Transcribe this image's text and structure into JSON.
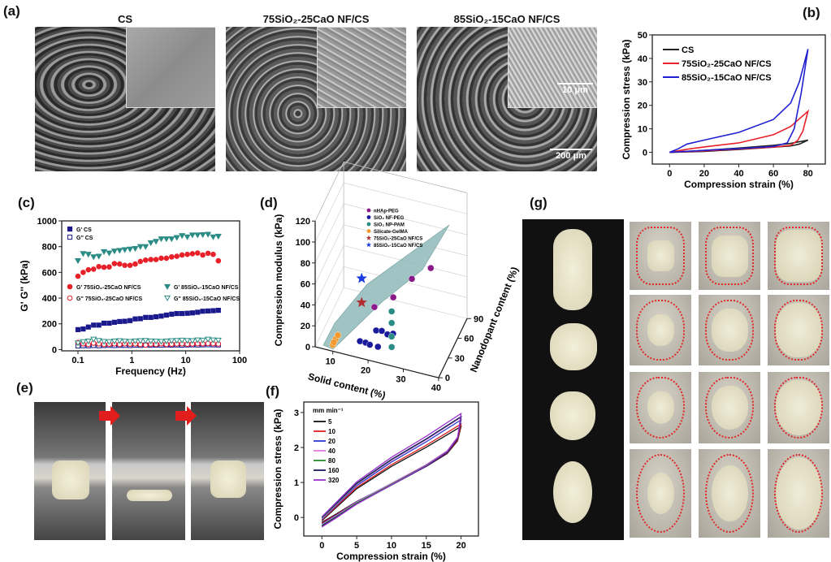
{
  "panels": {
    "a": {
      "label": "(a)",
      "titles": [
        "CS",
        "75SiO₂-25CaO NF/CS",
        "85SiO₂-15CaO NF/CS"
      ],
      "scale_inset": "10 μm",
      "scale_main": "200 μm"
    },
    "b": {
      "label": "(b)"
    },
    "c": {
      "label": "(c)"
    },
    "d": {
      "label": "(d)"
    },
    "e": {
      "label": "(e)"
    },
    "f": {
      "label": "(f)"
    },
    "g": {
      "label": "(g)"
    }
  },
  "colors": {
    "cs": "#222222",
    "ns75": "#e8202a",
    "ns85": "#2020d0",
    "navy": "#1a1a8c",
    "teal": "#2a8c85",
    "purple": "#8a1a8a",
    "orange": "#f39a2e"
  },
  "chart_data": [
    {
      "id": "b",
      "type": "line",
      "xlabel": "Compression strain (%)",
      "ylabel": "Compression stress (kPa)",
      "xlim": [
        -10,
        90
      ],
      "ylim": [
        -5,
        50
      ],
      "xticks": [
        0,
        20,
        40,
        60,
        80
      ],
      "yticks": [
        0,
        10,
        20,
        30,
        40,
        50
      ],
      "legend_position": "top-left",
      "series": [
        {
          "name": "CS",
          "color": "#222222",
          "points": [
            [
              0,
              0
            ],
            [
              20,
              0.8
            ],
            [
              40,
              1.8
            ],
            [
              60,
              3
            ],
            [
              70,
              3.8
            ],
            [
              80,
              5.2
            ],
            [
              75,
              3.5
            ],
            [
              70,
              2.7
            ],
            [
              60,
              2.2
            ],
            [
              40,
              1.2
            ],
            [
              20,
              0.4
            ],
            [
              0,
              0
            ]
          ]
        },
        {
          "name": "75SiO₂-25CaO NF/CS",
          "color": "#e8202a",
          "points": [
            [
              0,
              0
            ],
            [
              10,
              1.3
            ],
            [
              20,
              2.3
            ],
            [
              40,
              4
            ],
            [
              60,
              7.5
            ],
            [
              70,
              11
            ],
            [
              80,
              17.5
            ],
            [
              77,
              9
            ],
            [
              74,
              5
            ],
            [
              70,
              3
            ],
            [
              60,
              2.2
            ],
            [
              40,
              1.4
            ],
            [
              20,
              0.6
            ],
            [
              0,
              0
            ]
          ]
        },
        {
          "name": "85SiO₂-15CaO NF/CS",
          "color": "#2020d0",
          "points": [
            [
              0,
              0
            ],
            [
              5,
              1.5
            ],
            [
              10,
              3.5
            ],
            [
              20,
              5.2
            ],
            [
              40,
              8.5
            ],
            [
              60,
              14
            ],
            [
              70,
              21
            ],
            [
              75,
              30
            ],
            [
              80,
              44
            ],
            [
              76,
              25
            ],
            [
              72,
              10
            ],
            [
              68,
              4
            ],
            [
              60,
              2.5
            ],
            [
              40,
              1.6
            ],
            [
              20,
              0.8
            ],
            [
              0,
              0
            ]
          ]
        }
      ]
    },
    {
      "id": "c",
      "type": "scatter",
      "xscale": "log",
      "xlabel": "Frequency (Hz)",
      "ylabel": "G' G'' (kPa)",
      "xlim": [
        0.05,
        100
      ],
      "ylim": [
        -10,
        1000
      ],
      "xticks": [
        0.1,
        1,
        10,
        100
      ],
      "xtick_labels": [
        "0.1",
        "1",
        "10",
        "100"
      ],
      "yticks": [
        0,
        200,
        400,
        600,
        800,
        1000
      ],
      "x": [
        0.1,
        0.125,
        0.156,
        0.195,
        0.244,
        0.304,
        0.38,
        0.475,
        0.593,
        0.74,
        0.925,
        1.155,
        1.44,
        1.8,
        2.25,
        2.81,
        3.51,
        4.38,
        5.47,
        6.83,
        8.53,
        10.7,
        13.3,
        16.6,
        20.7,
        25.9,
        32.3,
        40.3
      ],
      "series": [
        {
          "name": "G' CS",
          "marker": "square-filled",
          "color": "#1a1a8c",
          "values": [
            155,
            160,
            175,
            190,
            190,
            205,
            205,
            212,
            218,
            220,
            225,
            238,
            240,
            250,
            250,
            255,
            260,
            268,
            275,
            280,
            280,
            282,
            285,
            290,
            298,
            300,
            302,
            305
          ]
        },
        {
          "name": "G'' CS",
          "marker": "square-open",
          "color": "#1a1a8c",
          "values": [
            28,
            30,
            30,
            32,
            30,
            32,
            33,
            32,
            33,
            33,
            32,
            34,
            33,
            35,
            34,
            35,
            34,
            36,
            35,
            36,
            35,
            36,
            37,
            36,
            37,
            38,
            37,
            36
          ]
        },
        {
          "name": "G' 75SiO₂-25CaO NF/CS",
          "marker": "circle-filled",
          "color": "#e8202a",
          "values": [
            570,
            600,
            620,
            625,
            645,
            640,
            642,
            668,
            665,
            655,
            655,
            665,
            685,
            695,
            700,
            700,
            710,
            710,
            720,
            725,
            735,
            740,
            745,
            750,
            735,
            748,
            740,
            690
          ]
        },
        {
          "name": "G'' 75SiO₂-25CaO NF/CS",
          "marker": "circle-open",
          "color": "#e8202a",
          "values": [
            55,
            45,
            40,
            50,
            45,
            40,
            42,
            45,
            40,
            45,
            42,
            44,
            40,
            35,
            42,
            40,
            45,
            40,
            42,
            44,
            45,
            42,
            44,
            46,
            45,
            48,
            46,
            44
          ]
        },
        {
          "name": "G' 85SiO₂-15CaO NF/CS",
          "marker": "triangle-down-filled",
          "color": "#2a8c85",
          "values": [
            690,
            745,
            740,
            720,
            725,
            760,
            750,
            765,
            770,
            775,
            780,
            785,
            800,
            800,
            830,
            840,
            860,
            860,
            860,
            870,
            885,
            875,
            890,
            890,
            892,
            895,
            875,
            880
          ]
        },
        {
          "name": "G'' 85SiO₂-15CaO NF/CS",
          "marker": "triangle-down-open",
          "color": "#2a8c85",
          "values": [
            50,
            60,
            65,
            80,
            70,
            62,
            60,
            65,
            68,
            64,
            62,
            66,
            68,
            70,
            66,
            64,
            62,
            65,
            68,
            70,
            72,
            70,
            68,
            74,
            72,
            80,
            74,
            72
          ]
        }
      ]
    },
    {
      "id": "d",
      "type": "scatter3d",
      "xlabel": "Solid content (%)",
      "ylabel": "Nanodopant content (%)",
      "zlabel": "Compression modulus (kPa)",
      "xticks": [
        10,
        20,
        30,
        40
      ],
      "yticks": [
        0,
        30,
        60,
        90
      ],
      "zticks": [
        0,
        20,
        40,
        60,
        80,
        100,
        120
      ],
      "legend_position": "top",
      "series": [
        {
          "name": "nHAp-PEG",
          "marker": "sphere",
          "color": "#8a1a8a",
          "points": [
            [
              20,
              20,
              38
            ],
            [
              25,
              24,
              49
            ],
            [
              30,
              27,
              69
            ],
            [
              35,
              31,
              81
            ]
          ]
        },
        {
          "name": "SiO₂ NF-PEG",
          "marker": "sphere",
          "color": "#1a1a9c",
          "points": [
            [
              16.8,
              10,
              9
            ],
            [
              18.4,
              10,
              9
            ],
            [
              19.6,
              10,
              8
            ],
            [
              21.9,
              10,
              8
            ],
            [
              18.7,
              40,
              2
            ],
            [
              20.3,
              40,
              3
            ],
            [
              21.9,
              40,
              1
            ],
            [
              23.5,
              40,
              3
            ]
          ]
        },
        {
          "name": "SiO₂ NP-PAM",
          "marker": "sphere",
          "color": "#2a8c85",
          "points": [
            [
              24.9,
              20,
              38
            ],
            [
              24.9,
              20,
              27
            ],
            [
              24.9,
              20,
              14
            ],
            [
              24.9,
              20,
              4
            ]
          ]
        },
        {
          "name": "Silicate-GelMA",
          "marker": "sphere",
          "color": "#f39a2e",
          "points": [
            [
              10,
              0,
              6
            ],
            [
              10.5,
              3,
              10
            ],
            [
              11,
              5,
              13
            ],
            [
              10.2,
              1,
              8
            ]
          ]
        },
        {
          "name": "75SiO₂-25CaO NF/CS",
          "marker": "star",
          "color": "#b03030",
          "points": [
            [
              18,
              2,
              52
            ]
          ]
        },
        {
          "name": "85SiO₂-15CaO NF/CS",
          "marker": "star",
          "color": "#1a3ae0",
          "points": [
            [
              18,
              2,
              75
            ]
          ]
        }
      ]
    },
    {
      "id": "f",
      "type": "line",
      "xlabel": "Compression strain (%)",
      "ylabel": "Compression stress (kPa)",
      "xlim": [
        -2.6,
        22.5
      ],
      "ylim": [
        -0.53,
        3.3
      ],
      "xticks": [
        0,
        5,
        10,
        15,
        20
      ],
      "yticks": [
        0,
        1,
        2,
        3
      ],
      "legend_title": "mm min⁻¹",
      "legend_position": "top-left",
      "loop": [
        [
          0,
          -0.1
        ],
        [
          2,
          0.3
        ],
        [
          5,
          0.9
        ],
        [
          10,
          1.6
        ],
        [
          15,
          2.2
        ],
        [
          20,
          2.85
        ],
        [
          19.5,
          2.4
        ],
        [
          18,
          2.0
        ],
        [
          15,
          1.6
        ],
        [
          10,
          1.05
        ],
        [
          5,
          0.5
        ],
        [
          2,
          0.1
        ],
        [
          0,
          -0.15
        ]
      ],
      "series": [
        {
          "name": "5",
          "color": "#111111",
          "peak": 2.6
        },
        {
          "name": "10",
          "color": "#e02020",
          "peak": 2.65
        },
        {
          "name": "20",
          "color": "#2a3ad0",
          "peak": 2.75
        },
        {
          "name": "40",
          "color": "#e07be0",
          "peak": 2.8
        },
        {
          "name": "80",
          "color": "#2a8a2a",
          "peak": 2.8
        },
        {
          "name": "160",
          "color": "#1a1a5c",
          "peak": 2.78
        },
        {
          "name": "320",
          "color": "#9933cc",
          "peak": 2.85
        }
      ]
    }
  ]
}
